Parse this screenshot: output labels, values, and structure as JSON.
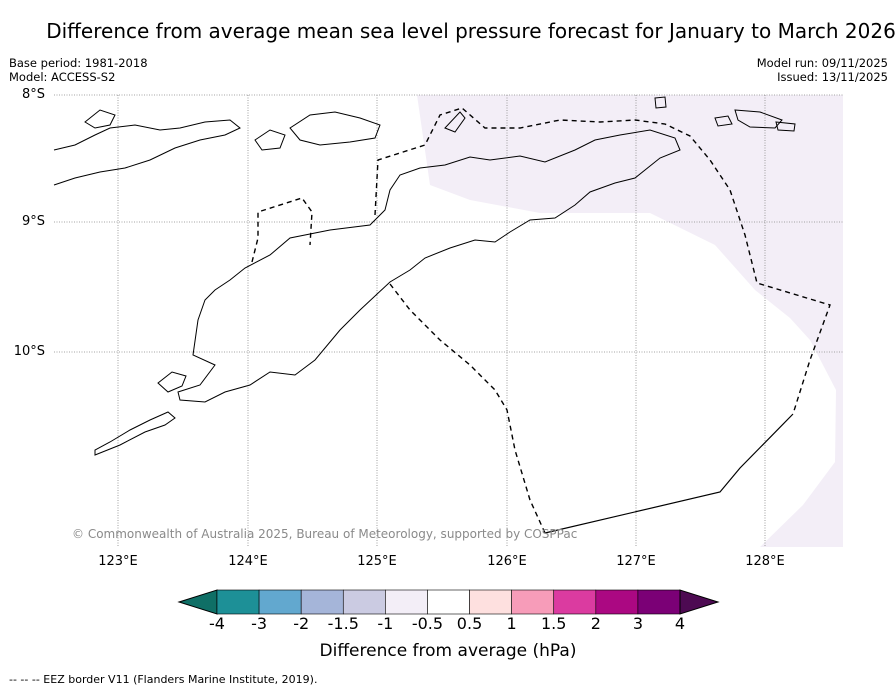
{
  "title": "Difference from average mean sea level pressure forecast for January to March 2026",
  "meta_left": {
    "base_period": "Base period: 1981-2018",
    "model": "Model: ACCESS-S2"
  },
  "meta_right": {
    "model_run": "Model run: 09/11/2025",
    "issued": "Issued: 13/11/2025"
  },
  "latitude_labels": [
    "8°S",
    "9°S",
    "10°S"
  ],
  "longitude_labels": [
    "123°E",
    "124°E",
    "125°E",
    "126°E",
    "127°E",
    "128°E"
  ],
  "copyright": "© Commonwealth of Australia 2025, Bureau of Meteorology, supported by COSPPac",
  "colorbar": {
    "label": "Difference from average (hPa)",
    "ticks": [
      "-4",
      "-3",
      "-2",
      "-1.5",
      "-1",
      "-0.5",
      "0.5",
      "1",
      "1.5",
      "2",
      "3",
      "4"
    ],
    "colors": [
      "#0f6f66",
      "#1d9097",
      "#62a8cf",
      "#a5b5d9",
      "#cbcbe2",
      "#f3eef7",
      "#ffffff",
      "#fee0df",
      "#f79cb9",
      "#db3ba0",
      "#ab0882",
      "#7b0076",
      "#4d0a52"
    ]
  },
  "legend_note": "--  --  -- EEZ border V11 (Flanders Marine Institute, 2019).",
  "map_field": {
    "shaded_category": "-1 to -0.5 hPa",
    "shade_color": "#f3eef7"
  }
}
